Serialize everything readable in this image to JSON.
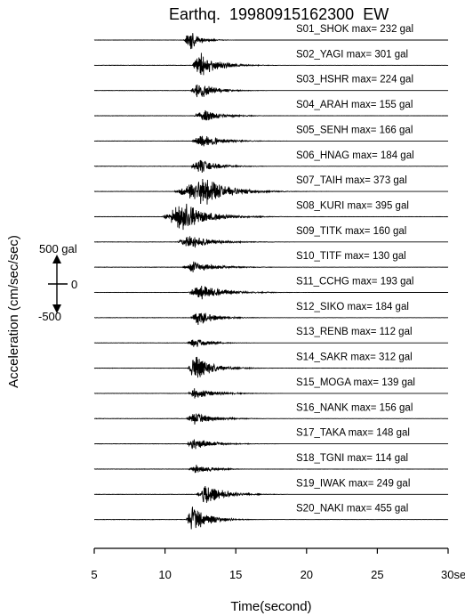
{
  "chart_data": {
    "type": "line",
    "title": "Earthq.  19980915162300  EW",
    "xlabel": "Time(second)",
    "ylabel": "Acceleration (cm/sec/sec)",
    "xlim": [
      5,
      30
    ],
    "xticks": [
      5,
      10,
      15,
      20,
      25,
      30
    ],
    "xtick_labels": [
      "5",
      "10",
      "15",
      "20",
      "25",
      "30sec"
    ],
    "scale_bar": {
      "top": "500 gal",
      "zero": "0",
      "bottom": "-500",
      "gal": 500
    },
    "series": [
      {
        "name": "S01_SHOK",
        "max_label": "max= 232 gal",
        "max_gal": 232,
        "onset": 11.3,
        "peak_t": 11.8,
        "dur": 1.5
      },
      {
        "name": "S02_YAGI",
        "max_label": "max= 301 gal",
        "max_gal": 301,
        "onset": 11.9,
        "peak_t": 12.5,
        "dur": 2.6
      },
      {
        "name": "S03_HSHR",
        "max_label": "max= 224 gal",
        "max_gal": 224,
        "onset": 11.8,
        "peak_t": 12.3,
        "dur": 2.4
      },
      {
        "name": "S04_ARAH",
        "max_label": "max= 155 gal",
        "max_gal": 155,
        "onset": 12.0,
        "peak_t": 12.8,
        "dur": 2.6
      },
      {
        "name": "S05_SENH",
        "max_label": "max= 166 gal",
        "max_gal": 166,
        "onset": 11.9,
        "peak_t": 12.6,
        "dur": 2.8
      },
      {
        "name": "S06_HNAG",
        "max_label": "max= 184 gal",
        "max_gal": 184,
        "onset": 11.8,
        "peak_t": 12.4,
        "dur": 2.6
      },
      {
        "name": "S07_TAIH",
        "max_label": "max= 373 gal",
        "max_gal": 373,
        "onset": 10.6,
        "peak_t": 12.8,
        "dur": 3.6
      },
      {
        "name": "S08_KURI",
        "max_label": "max= 395 gal",
        "max_gal": 395,
        "onset": 9.8,
        "peak_t": 11.3,
        "dur": 3.6
      },
      {
        "name": "S09_TITK",
        "max_label": "max= 160 gal",
        "max_gal": 160,
        "onset": 10.8,
        "peak_t": 11.8,
        "dur": 3.4
      },
      {
        "name": "S10_TITF",
        "max_label": "max= 130 gal",
        "max_gal": 130,
        "onset": 11.2,
        "peak_t": 12.0,
        "dur": 3.4
      },
      {
        "name": "S11_CCHG",
        "max_label": "max= 193 gal",
        "max_gal": 193,
        "onset": 11.6,
        "peak_t": 12.4,
        "dur": 3.6
      },
      {
        "name": "S12_SIKO",
        "max_label": "max= 184 gal",
        "max_gal": 184,
        "onset": 11.8,
        "peak_t": 12.3,
        "dur": 2.6
      },
      {
        "name": "S13_RENB",
        "max_label": "max= 112 gal",
        "max_gal": 112,
        "onset": 11.5,
        "peak_t": 12.1,
        "dur": 2.2
      },
      {
        "name": "S14_SAKR",
        "max_label": "max= 312 gal",
        "max_gal": 312,
        "onset": 11.6,
        "peak_t": 12.1,
        "dur": 2.6
      },
      {
        "name": "S15_MOGA",
        "max_label": "max= 139 gal",
        "max_gal": 139,
        "onset": 11.6,
        "peak_t": 12.1,
        "dur": 3.0
      },
      {
        "name": "S16_NANK",
        "max_label": "max= 156 gal",
        "max_gal": 156,
        "onset": 11.5,
        "peak_t": 12.0,
        "dur": 2.8
      },
      {
        "name": "S17_TAKA",
        "max_label": "max= 148 gal",
        "max_gal": 148,
        "onset": 11.5,
        "peak_t": 12.0,
        "dur": 2.8
      },
      {
        "name": "S18_TGNI",
        "max_label": "max= 114 gal",
        "max_gal": 114,
        "onset": 11.6,
        "peak_t": 12.2,
        "dur": 2.4
      },
      {
        "name": "S19_IWAK",
        "max_label": "max= 249 gal",
        "max_gal": 249,
        "onset": 12.2,
        "peak_t": 12.9,
        "dur": 2.6
      },
      {
        "name": "S20_NAKI",
        "max_label": "max= 455 gal",
        "max_gal": 455,
        "onset": 11.5,
        "peak_t": 11.9,
        "dur": 2.4
      }
    ],
    "grid": false,
    "legend": "none"
  }
}
